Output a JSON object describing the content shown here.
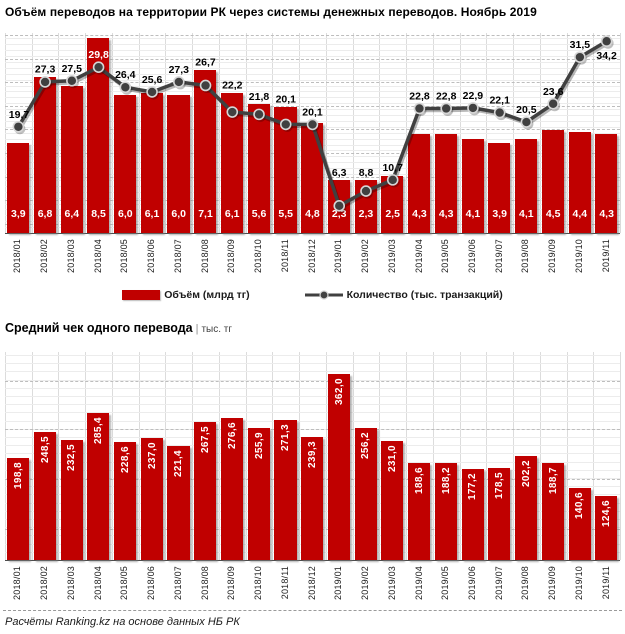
{
  "page": {
    "title": "Объём переводов на территории РК через системы денежных переводов. Ноябрь 2019",
    "footer": "Расчёты Ranking.kz на основе данных НБ РК",
    "separator_glyph": "|"
  },
  "colors": {
    "bar": "#c00000",
    "line": "#404040",
    "marker_ring": "#d6d6d6",
    "grid_major": "#bdbdbd",
    "grid_minor": "#ececec",
    "grid_vertical": "#dcdcdc",
    "axis": "#4d4d4d",
    "value_label_on_bar": "#ffffff",
    "value_label": "#000000"
  },
  "chart_data": [
    {
      "type": "bar",
      "title": "Объём переводов на территории РК через системы денежных переводов. Ноябрь 2019",
      "categories": [
        "2018/01",
        "2018/02",
        "2018/03",
        "2018/04",
        "2018/05",
        "2018/06",
        "2018/07",
        "2018/08",
        "2018/09",
        "2018/10",
        "2018/11",
        "2018/12",
        "2019/01",
        "2019/02",
        "2019/03",
        "2019/04",
        "2019/05",
        "2019/06",
        "2019/07",
        "2019/08",
        "2019/09",
        "2019/10",
        "2019/11"
      ],
      "series": [
        {
          "name": "Объём (млрд тг)",
          "type": "bar",
          "axis": "left",
          "values": [
            3.9,
            6.8,
            6.4,
            8.5,
            6.0,
            6.1,
            6.0,
            7.1,
            6.1,
            5.6,
            5.5,
            4.8,
            2.3,
            2.3,
            2.5,
            4.3,
            4.3,
            4.1,
            3.9,
            4.1,
            4.5,
            4.4,
            4.3
          ]
        },
        {
          "name": "Количество (тыс. транзакций)",
          "type": "line",
          "axis": "right",
          "values": [
            19.7,
            27.3,
            27.5,
            29.8,
            26.4,
            25.6,
            27.3,
            26.7,
            22.2,
            21.8,
            20.1,
            20.1,
            6.3,
            8.8,
            10.7,
            22.8,
            22.8,
            22.9,
            22.1,
            20.5,
            23.6,
            31.5,
            34.2
          ]
        }
      ],
      "legend_position": "bottom",
      "grid": true,
      "value_labels": true,
      "decimal_separator": ","
    },
    {
      "type": "bar",
      "title": "Средний чек одного перевода",
      "unit": "тыс. тг",
      "categories": [
        "2018/01",
        "2018/02",
        "2018/03",
        "2018/04",
        "2018/05",
        "2018/06",
        "2018/07",
        "2018/08",
        "2018/09",
        "2018/10",
        "2018/11",
        "2018/12",
        "2019/01",
        "2019/02",
        "2019/03",
        "2019/04",
        "2019/05",
        "2019/06",
        "2019/07",
        "2019/08",
        "2019/09",
        "2019/10",
        "2019/11"
      ],
      "series": [
        {
          "name": "Средний чек",
          "type": "bar",
          "values": [
            198.8,
            248.5,
            232.5,
            285.4,
            228.6,
            237.0,
            221.4,
            267.5,
            276.6,
            255.9,
            271.3,
            239.3,
            362.0,
            256.2,
            231.0,
            188.6,
            188.2,
            177.2,
            178.5,
            202.2,
            188.7,
            140.6,
            124.6
          ]
        }
      ],
      "legend_position": "none",
      "grid": true,
      "value_labels": true,
      "decimal_separator": ","
    }
  ]
}
